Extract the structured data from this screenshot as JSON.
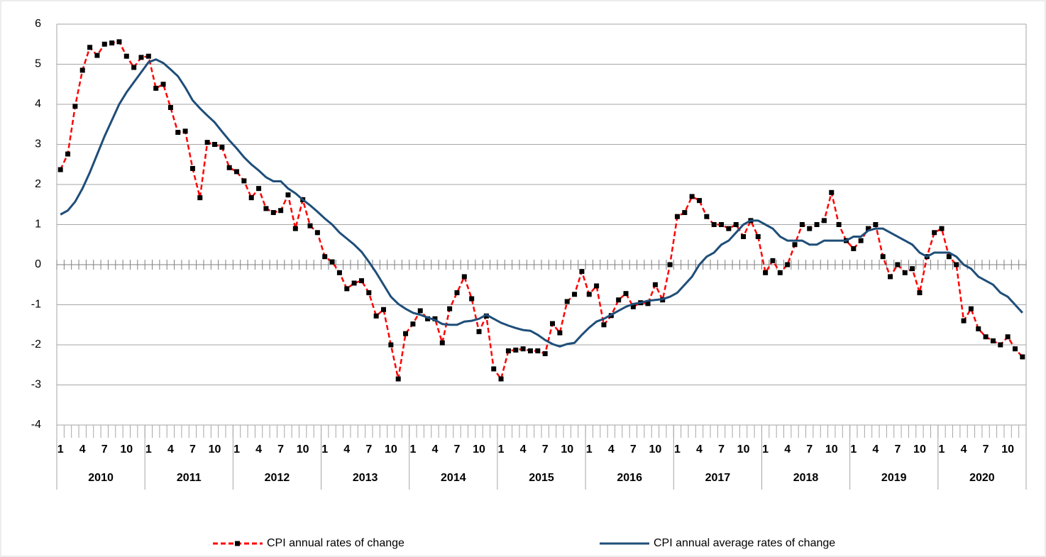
{
  "chart_data": {
    "type": "line",
    "categories": [
      "1",
      null,
      null,
      "4",
      null,
      null,
      "7",
      null,
      null,
      "10",
      null,
      null,
      "1",
      null,
      null,
      "4",
      null,
      null,
      "7",
      null,
      null,
      "10",
      null,
      null,
      "1",
      null,
      null,
      "4",
      null,
      null,
      "7",
      null,
      null,
      "10",
      null,
      null,
      "1",
      null,
      null,
      "4",
      null,
      null,
      "7",
      null,
      null,
      "10",
      null,
      null,
      "1",
      null,
      null,
      "4",
      null,
      null,
      "7",
      null,
      null,
      "10",
      null,
      null,
      "1",
      null,
      null,
      "4",
      null,
      null,
      "7",
      null,
      null,
      "10",
      null,
      null,
      "1",
      null,
      null,
      "4",
      null,
      null,
      "7",
      null,
      null,
      "10",
      null,
      null,
      "1",
      null,
      null,
      "4",
      null,
      null,
      "7",
      null,
      null,
      "10",
      null,
      null,
      "1",
      null,
      null,
      "4",
      null,
      null,
      "7",
      null,
      null,
      "10",
      null,
      null,
      "1",
      null,
      null,
      "4",
      null,
      null,
      "7",
      null,
      null,
      "10",
      null,
      null,
      "1",
      null,
      null,
      "4",
      null,
      null,
      "7",
      null,
      null,
      "10",
      null,
      null
    ],
    "groups": [
      "2010",
      "2011",
      "2012",
      "2013",
      "2014",
      "2015",
      "2016",
      "2017",
      "2018",
      "2019",
      "2020"
    ],
    "series": [
      {
        "name": "CPI annual rates of change",
        "color": "#ff0000",
        "dashed": true,
        "marker": "#000000",
        "values": [
          2.37,
          2.76,
          3.95,
          4.85,
          5.42,
          5.22,
          5.5,
          5.53,
          5.56,
          5.2,
          4.92,
          5.17,
          5.2,
          4.4,
          4.5,
          3.92,
          3.3,
          3.33,
          2.4,
          1.67,
          3.05,
          3.0,
          2.93,
          2.42,
          2.32,
          2.09,
          1.67,
          1.9,
          1.4,
          1.3,
          1.35,
          1.74,
          0.9,
          1.62,
          0.97,
          0.8,
          0.2,
          0.07,
          -0.2,
          -0.6,
          -0.46,
          -0.4,
          -0.7,
          -1.28,
          -1.12,
          -2.0,
          -2.85,
          -1.72,
          -1.48,
          -1.15,
          -1.35,
          -1.35,
          -1.95,
          -1.1,
          -0.7,
          -0.3,
          -0.85,
          -1.67,
          -1.28,
          -2.6,
          -2.85,
          -2.15,
          -2.13,
          -2.1,
          -2.15,
          -2.15,
          -2.22,
          -1.47,
          -1.7,
          -0.92,
          -0.74,
          -0.17,
          -0.74,
          -0.53,
          -1.5,
          -1.27,
          -0.88,
          -0.72,
          -1.05,
          -0.95,
          -0.97,
          -0.5,
          -0.88,
          0.0,
          1.2,
          1.3,
          1.7,
          1.6,
          1.2,
          1.0,
          1.0,
          0.9,
          1.0,
          0.7,
          1.1,
          0.7,
          -0.2,
          0.1,
          -0.2,
          0.0,
          0.5,
          1.0,
          0.9,
          1.0,
          1.1,
          1.8,
          1.0,
          0.6,
          0.4,
          0.6,
          0.9,
          1.0,
          0.2,
          -0.3,
          0.0,
          -0.2,
          -0.1,
          -0.7,
          0.2,
          0.8,
          0.9,
          0.2,
          0.0,
          -1.4,
          -1.1,
          -1.6,
          -1.8,
          -1.9,
          -2.0,
          -1.8,
          -2.1,
          -2.3
        ]
      },
      {
        "name": "CPI annual average rates of change",
        "color": "#1f4e79",
        "dashed": false,
        "values": [
          1.25,
          1.35,
          1.57,
          1.9,
          2.3,
          2.75,
          3.2,
          3.6,
          4.0,
          4.3,
          4.55,
          4.8,
          5.05,
          5.12,
          5.03,
          4.87,
          4.7,
          4.42,
          4.1,
          3.9,
          3.72,
          3.55,
          3.32,
          3.1,
          2.9,
          2.68,
          2.5,
          2.35,
          2.18,
          2.08,
          2.08,
          1.9,
          1.78,
          1.62,
          1.48,
          1.32,
          1.15,
          1.0,
          0.8,
          0.65,
          0.5,
          0.32,
          0.07,
          -0.2,
          -0.5,
          -0.8,
          -0.98,
          -1.1,
          -1.2,
          -1.25,
          -1.32,
          -1.38,
          -1.48,
          -1.5,
          -1.5,
          -1.42,
          -1.4,
          -1.35,
          -1.25,
          -1.35,
          -1.45,
          -1.52,
          -1.58,
          -1.63,
          -1.65,
          -1.75,
          -1.88,
          -1.98,
          -2.04,
          -1.98,
          -1.95,
          -1.75,
          -1.57,
          -1.42,
          -1.35,
          -1.25,
          -1.15,
          -1.05,
          -0.98,
          -0.95,
          -0.9,
          -0.88,
          -0.86,
          -0.8,
          -0.7,
          -0.5,
          -0.3,
          0.0,
          0.2,
          0.3,
          0.5,
          0.6,
          0.8,
          1.0,
          1.1,
          1.1,
          1.0,
          0.9,
          0.7,
          0.6,
          0.6,
          0.6,
          0.5,
          0.5,
          0.6,
          0.6,
          0.6,
          0.6,
          0.7,
          0.7,
          0.85,
          0.9,
          0.9,
          0.8,
          0.7,
          0.6,
          0.5,
          0.3,
          0.2,
          0.3,
          0.3,
          0.3,
          0.2,
          0.0,
          -0.1,
          -0.3,
          -0.4,
          -0.5,
          -0.7,
          -0.8,
          -1.0,
          -1.2
        ]
      }
    ],
    "ylim": [
      -4,
      6
    ],
    "yticks": [
      -4,
      -3,
      -2,
      -1,
      0,
      1,
      2,
      3,
      4,
      5,
      6
    ],
    "grid": true,
    "legend": "bottom"
  }
}
